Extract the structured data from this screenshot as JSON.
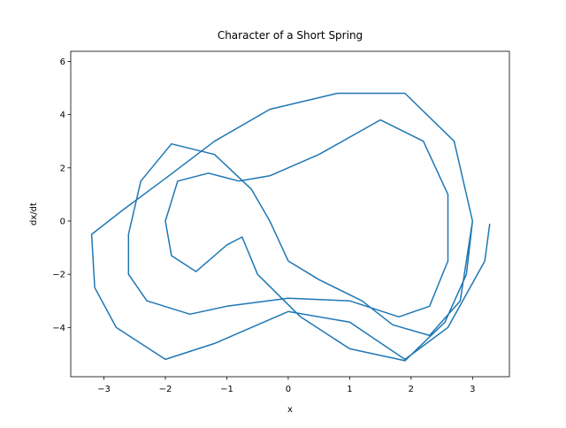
{
  "chart_data": {
    "type": "line",
    "title": "Character of a Short Spring",
    "xlabel": "x",
    "ylabel": "dx/dt",
    "color": "#1f77b4",
    "x": [
      3.0,
      2.9,
      2.55,
      1.9,
      1.0,
      0.2,
      -0.5,
      -0.75,
      -1.0,
      -1.5,
      -1.9,
      -2.0,
      -1.8,
      -1.3,
      -0.8,
      -0.3,
      0.5,
      1.5,
      2.2,
      2.6,
      2.6,
      2.3,
      1.8,
      1.0,
      0.0,
      -1.0,
      -1.6,
      -2.3,
      -2.6,
      -2.6,
      -2.4,
      -1.9,
      -1.2,
      -0.6,
      -0.3,
      0.0,
      0.5,
      1.2,
      1.7,
      2.3,
      2.8,
      3.0,
      2.7,
      1.9,
      0.8,
      -0.3,
      -1.2,
      -2.0,
      -2.7,
      -3.2,
      -3.15,
      -2.8,
      -2.0,
      -1.2,
      0.0,
      1.0,
      1.9,
      2.6,
      3.2,
      3.28
    ],
    "values": [
      0.0,
      -2.0,
      -3.8,
      -5.25,
      -4.8,
      -3.6,
      -2.0,
      -0.6,
      -0.9,
      -1.9,
      -1.3,
      0.0,
      1.5,
      1.8,
      1.5,
      1.7,
      2.5,
      3.8,
      3.0,
      1.0,
      -1.5,
      -3.2,
      -3.6,
      -3.0,
      -2.9,
      -3.2,
      -3.5,
      -3.0,
      -2.0,
      -0.5,
      1.5,
      2.9,
      2.5,
      1.2,
      0.0,
      -1.5,
      -2.2,
      -3.0,
      -3.9,
      -4.3,
      -3.0,
      0.0,
      3.0,
      4.8,
      4.8,
      4.2,
      3.0,
      1.6,
      0.4,
      -0.5,
      -2.5,
      -4.0,
      -5.2,
      -4.6,
      -3.4,
      -3.8,
      -5.2,
      -4.0,
      -1.5,
      -0.1
    ],
    "xlim": [
      -3.54,
      3.6
    ],
    "ylim": [
      -5.85,
      6.38
    ],
    "xticks": [
      {
        "value": -3,
        "label": "−3"
      },
      {
        "value": -2,
        "label": "−2"
      },
      {
        "value": -1,
        "label": "−1"
      },
      0,
      1,
      2,
      3
    ],
    "yticks": [
      {
        "value": -4,
        "label": "−4"
      },
      {
        "value": -2,
        "label": "−2"
      },
      0,
      2,
      4,
      6
    ]
  }
}
